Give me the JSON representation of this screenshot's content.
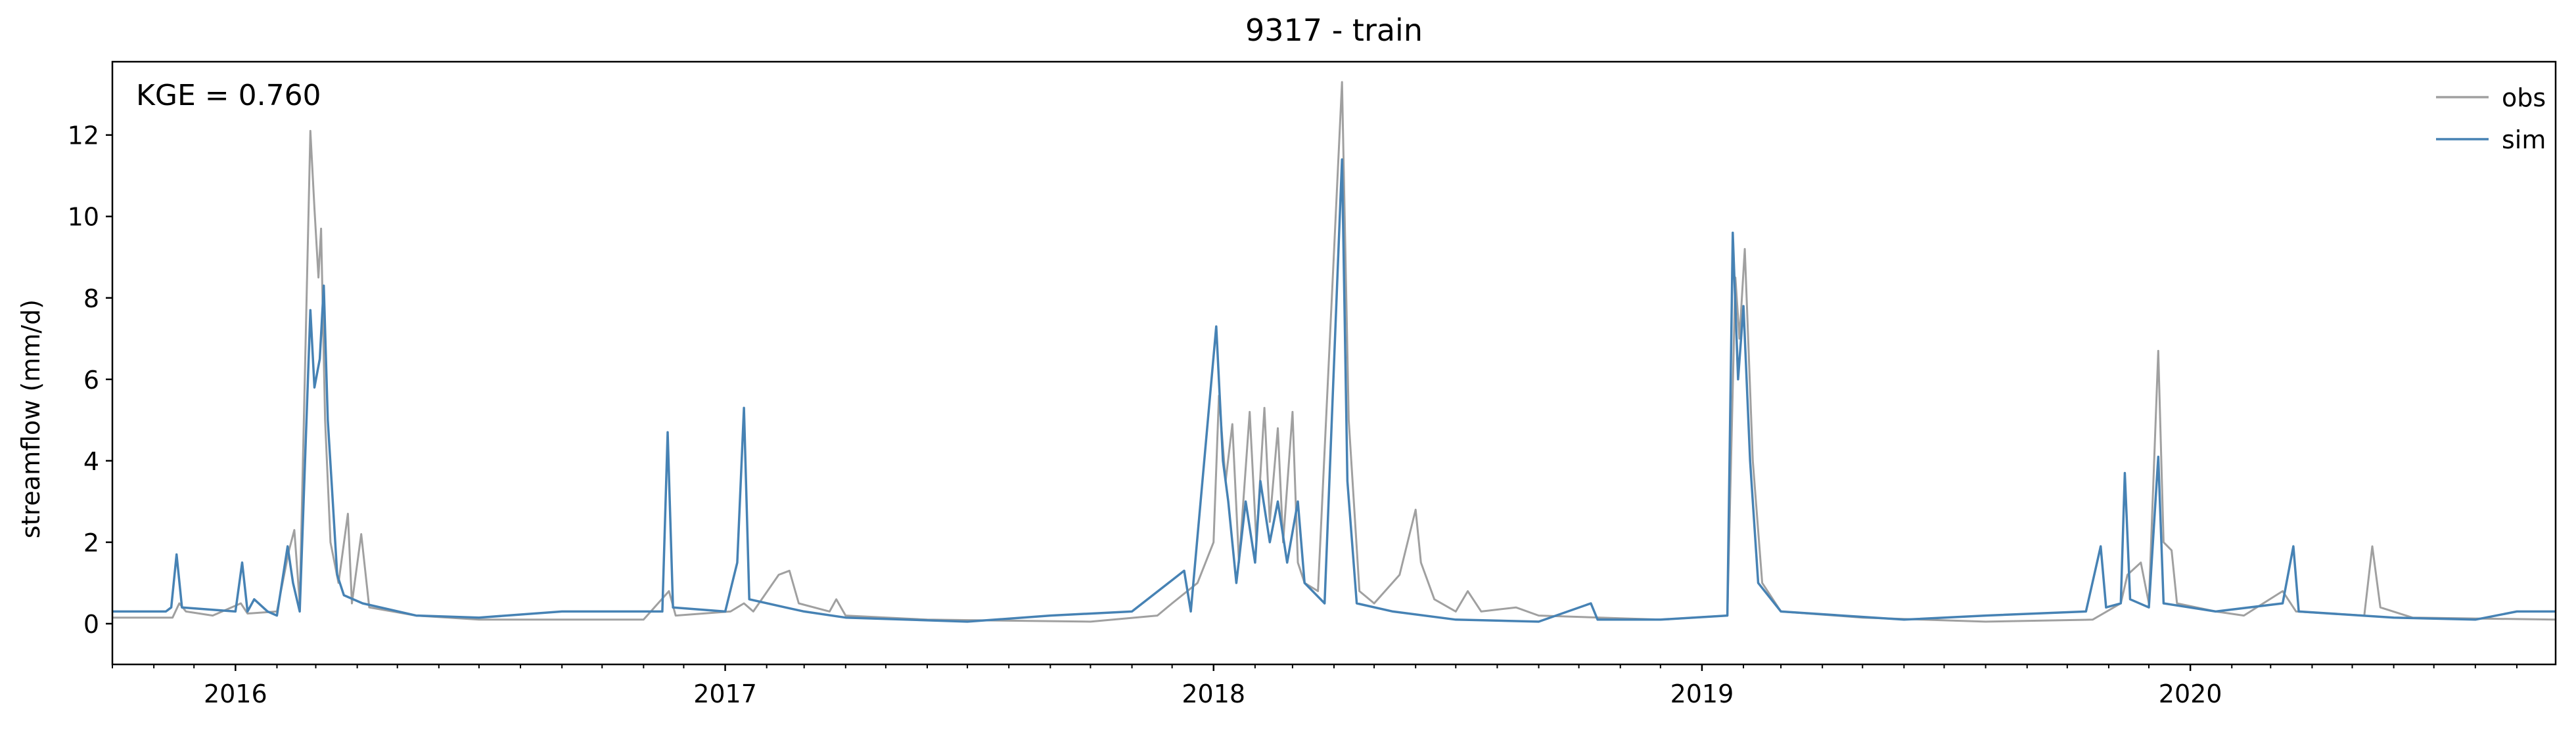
{
  "chart_data": {
    "type": "line",
    "title": "9317 - train",
    "xlabel": "",
    "ylabel": "streamflow (mm/d)",
    "annotation": "KGE = 0.760",
    "xlim": [
      "2015-10-01",
      "2020-09-30"
    ],
    "ylim": [
      -1,
      13.8
    ],
    "y_ticks": [
      0,
      2,
      4,
      6,
      8,
      10,
      12
    ],
    "x_ticks": [
      "2016",
      "2017",
      "2018",
      "2019",
      "2020"
    ],
    "grid": false,
    "legend_position": "top-right",
    "series": [
      {
        "name": "obs",
        "color": "#a0a0a0",
        "points": [
          [
            "2015-10-01",
            0.15
          ],
          [
            "2015-11-15",
            0.15
          ],
          [
            "2015-11-20",
            0.5
          ],
          [
            "2015-11-25",
            0.3
          ],
          [
            "2015-12-15",
            0.2
          ],
          [
            "2016-01-05",
            0.5
          ],
          [
            "2016-01-10",
            0.25
          ],
          [
            "2016-02-01",
            0.3
          ],
          [
            "2016-02-10",
            1.8
          ],
          [
            "2016-02-14",
            2.3
          ],
          [
            "2016-02-18",
            0.5
          ],
          [
            "2016-02-26",
            12.1
          ],
          [
            "2016-02-29",
            10.2
          ],
          [
            "2016-03-03",
            8.5
          ],
          [
            "2016-03-05",
            9.7
          ],
          [
            "2016-03-08",
            5.0
          ],
          [
            "2016-03-12",
            2.0
          ],
          [
            "2016-03-18",
            1.0
          ],
          [
            "2016-03-25",
            2.7
          ],
          [
            "2016-03-28",
            0.5
          ],
          [
            "2016-04-04",
            2.2
          ],
          [
            "2016-04-10",
            0.4
          ],
          [
            "2016-05-15",
            0.2
          ],
          [
            "2016-07-01",
            0.1
          ],
          [
            "2016-11-01",
            0.1
          ],
          [
            "2016-11-20",
            0.8
          ],
          [
            "2016-11-25",
            0.2
          ],
          [
            "2017-01-05",
            0.3
          ],
          [
            "2017-01-15",
            0.5
          ],
          [
            "2017-01-22",
            0.3
          ],
          [
            "2017-02-10",
            1.2
          ],
          [
            "2017-02-18",
            1.3
          ],
          [
            "2017-02-25",
            0.5
          ],
          [
            "2017-03-20",
            0.3
          ],
          [
            "2017-03-25",
            0.6
          ],
          [
            "2017-04-01",
            0.2
          ],
          [
            "2017-06-01",
            0.1
          ],
          [
            "2017-10-01",
            0.05
          ],
          [
            "2017-11-20",
            0.2
          ],
          [
            "2017-12-01",
            0.5
          ],
          [
            "2017-12-20",
            1.0
          ],
          [
            "2018-01-01",
            2.0
          ],
          [
            "2018-01-05",
            5.6
          ],
          [
            "2018-01-10",
            3.5
          ],
          [
            "2018-01-15",
            4.9
          ],
          [
            "2018-01-20",
            1.5
          ],
          [
            "2018-01-28",
            5.2
          ],
          [
            "2018-02-02",
            2.0
          ],
          [
            "2018-02-08",
            5.3
          ],
          [
            "2018-02-12",
            2.5
          ],
          [
            "2018-02-18",
            4.8
          ],
          [
            "2018-02-22",
            2.0
          ],
          [
            "2018-03-01",
            5.2
          ],
          [
            "2018-03-05",
            1.5
          ],
          [
            "2018-03-10",
            1.0
          ],
          [
            "2018-03-20",
            0.8
          ],
          [
            "2018-04-07",
            13.3
          ],
          [
            "2018-04-12",
            5.0
          ],
          [
            "2018-04-20",
            0.8
          ],
          [
            "2018-05-01",
            0.5
          ],
          [
            "2018-05-20",
            1.2
          ],
          [
            "2018-06-01",
            2.8
          ],
          [
            "2018-06-05",
            1.5
          ],
          [
            "2018-06-15",
            0.6
          ],
          [
            "2018-07-01",
            0.3
          ],
          [
            "2018-07-10",
            0.8
          ],
          [
            "2018-07-20",
            0.3
          ],
          [
            "2018-08-15",
            0.4
          ],
          [
            "2018-09-01",
            0.2
          ],
          [
            "2018-12-01",
            0.1
          ],
          [
            "2019-01-20",
            0.2
          ],
          [
            "2019-01-26",
            8.5
          ],
          [
            "2019-01-29",
            7.0
          ],
          [
            "2019-02-02",
            9.2
          ],
          [
            "2019-02-08",
            4.0
          ],
          [
            "2019-02-15",
            1.0
          ],
          [
            "2019-03-01",
            0.3
          ],
          [
            "2019-05-01",
            0.15
          ],
          [
            "2019-08-01",
            0.05
          ],
          [
            "2019-10-20",
            0.1
          ],
          [
            "2019-11-10",
            0.5
          ],
          [
            "2019-11-15",
            1.2
          ],
          [
            "2019-11-25",
            1.5
          ],
          [
            "2019-12-01",
            0.5
          ],
          [
            "2019-12-08",
            6.7
          ],
          [
            "2019-12-12",
            2.0
          ],
          [
            "2019-12-18",
            1.8
          ],
          [
            "2019-12-22",
            0.5
          ],
          [
            "2020-01-20",
            0.3
          ],
          [
            "2020-02-10",
            0.2
          ],
          [
            "2020-03-10",
            0.8
          ],
          [
            "2020-03-20",
            0.3
          ],
          [
            "2020-05-10",
            0.2
          ],
          [
            "2020-05-16",
            1.9
          ],
          [
            "2020-05-22",
            0.4
          ],
          [
            "2020-06-15",
            0.15
          ],
          [
            "2020-09-30",
            0.1
          ]
        ]
      },
      {
        "name": "sim",
        "color": "#4682b4",
        "points": [
          [
            "2015-10-01",
            0.3
          ],
          [
            "2015-11-10",
            0.3
          ],
          [
            "2015-11-14",
            0.4
          ],
          [
            "2015-11-18",
            1.7
          ],
          [
            "2015-11-22",
            0.4
          ],
          [
            "2016-01-01",
            0.3
          ],
          [
            "2016-01-06",
            1.5
          ],
          [
            "2016-01-10",
            0.3
          ],
          [
            "2016-01-15",
            0.6
          ],
          [
            "2016-01-25",
            0.3
          ],
          [
            "2016-02-01",
            0.2
          ],
          [
            "2016-02-09",
            1.9
          ],
          [
            "2016-02-13",
            1.0
          ],
          [
            "2016-02-18",
            0.3
          ],
          [
            "2016-02-26",
            7.7
          ],
          [
            "2016-02-29",
            5.8
          ],
          [
            "2016-03-04",
            6.5
          ],
          [
            "2016-03-07",
            8.3
          ],
          [
            "2016-03-10",
            5.0
          ],
          [
            "2016-03-13",
            3.4
          ],
          [
            "2016-03-17",
            1.2
          ],
          [
            "2016-03-22",
            0.7
          ],
          [
            "2016-04-05",
            0.5
          ],
          [
            "2016-05-15",
            0.2
          ],
          [
            "2016-07-01",
            0.15
          ],
          [
            "2016-09-01",
            0.3
          ],
          [
            "2016-11-15",
            0.3
          ],
          [
            "2016-11-19",
            4.7
          ],
          [
            "2016-11-23",
            0.4
          ],
          [
            "2017-01-01",
            0.3
          ],
          [
            "2017-01-10",
            1.5
          ],
          [
            "2017-01-15",
            5.3
          ],
          [
            "2017-01-19",
            0.6
          ],
          [
            "2017-02-15",
            0.4
          ],
          [
            "2017-03-01",
            0.3
          ],
          [
            "2017-04-01",
            0.15
          ],
          [
            "2017-07-01",
            0.05
          ],
          [
            "2017-09-01",
            0.2
          ],
          [
            "2017-11-01",
            0.3
          ],
          [
            "2017-12-10",
            1.3
          ],
          [
            "2017-12-15",
            0.3
          ],
          [
            "2018-01-03",
            7.3
          ],
          [
            "2018-01-08",
            4.0
          ],
          [
            "2018-01-12",
            3.0
          ],
          [
            "2018-01-18",
            1.0
          ],
          [
            "2018-01-25",
            3.0
          ],
          [
            "2018-02-01",
            1.5
          ],
          [
            "2018-02-05",
            3.5
          ],
          [
            "2018-02-12",
            2.0
          ],
          [
            "2018-02-18",
            3.0
          ],
          [
            "2018-02-25",
            1.5
          ],
          [
            "2018-03-05",
            3.0
          ],
          [
            "2018-03-10",
            1.0
          ],
          [
            "2018-03-25",
            0.5
          ],
          [
            "2018-04-07",
            11.4
          ],
          [
            "2018-04-11",
            3.5
          ],
          [
            "2018-04-18",
            0.5
          ],
          [
            "2018-05-15",
            0.3
          ],
          [
            "2018-07-01",
            0.1
          ],
          [
            "2018-09-01",
            0.05
          ],
          [
            "2018-10-10",
            0.5
          ],
          [
            "2018-10-15",
            0.1
          ],
          [
            "2018-12-01",
            0.1
          ],
          [
            "2019-01-20",
            0.2
          ],
          [
            "2019-01-24",
            9.6
          ],
          [
            "2019-01-28",
            6.0
          ],
          [
            "2019-02-01",
            7.8
          ],
          [
            "2019-02-06",
            4.0
          ],
          [
            "2019-02-12",
            1.0
          ],
          [
            "2019-03-01",
            0.3
          ],
          [
            "2019-06-01",
            0.1
          ],
          [
            "2019-08-01",
            0.2
          ],
          [
            "2019-10-15",
            0.3
          ],
          [
            "2019-10-26",
            1.9
          ],
          [
            "2019-10-30",
            0.4
          ],
          [
            "2019-11-10",
            0.5
          ],
          [
            "2019-11-13",
            3.7
          ],
          [
            "2019-11-17",
            0.6
          ],
          [
            "2019-12-01",
            0.4
          ],
          [
            "2019-12-08",
            4.1
          ],
          [
            "2019-12-12",
            0.5
          ],
          [
            "2020-01-20",
            0.3
          ],
          [
            "2020-03-10",
            0.5
          ],
          [
            "2020-03-18",
            1.9
          ],
          [
            "2020-03-22",
            0.3
          ],
          [
            "2020-06-01",
            0.15
          ],
          [
            "2020-08-01",
            0.1
          ],
          [
            "2020-09-01",
            0.3
          ],
          [
            "2020-09-30",
            0.3
          ]
        ]
      }
    ]
  }
}
